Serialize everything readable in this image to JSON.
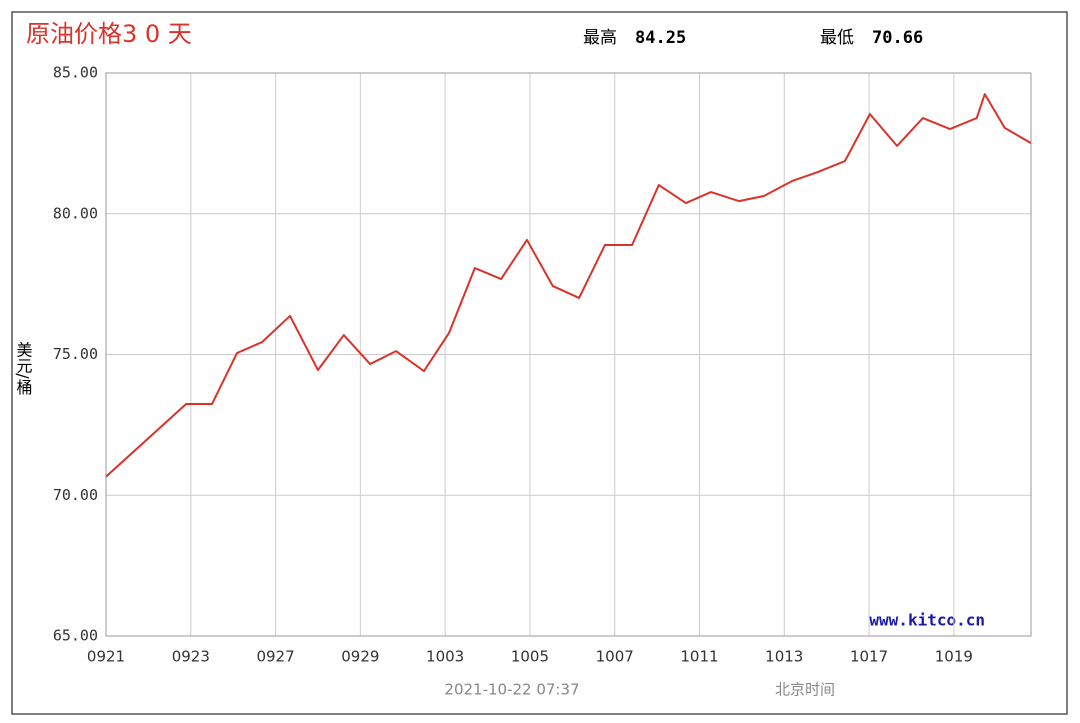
{
  "chart_data": {
    "type": "line",
    "title": "原油价格3 0 天",
    "high_label": "最高",
    "high": 84.25,
    "low_label": "最低",
    "low": 70.66,
    "ylabel": "美元/桶",
    "watermark": "www.kitco.cn",
    "timestamp": "2021-10-22 07:37",
    "timezone": "北京时间",
    "x": [
      0,
      1.89,
      2.5,
      3.09,
      3.68,
      4.34,
      5.0,
      5.61,
      6.23,
      6.84,
      7.5,
      8.09,
      8.7,
      9.32,
      9.93,
      10.54,
      11.16,
      11.77,
      12.41,
      13.04,
      13.68,
      14.27,
      14.93,
      15.52,
      16.18,
      16.79,
      17.43,
      18.02,
      18.66,
      19.27,
      19.91,
      20.54,
      20.73,
      21.2,
      21.82
    ],
    "series": [
      {
        "color": "#d9332b",
        "values": [
          70.66,
          73.24,
          73.24,
          75.05,
          75.44,
          76.37,
          74.45,
          75.69,
          74.66,
          75.12,
          74.41,
          75.76,
          78.07,
          77.68,
          79.07,
          77.43,
          77.01,
          78.89,
          78.89,
          81.02,
          80.38,
          80.77,
          80.45,
          80.63,
          81.16,
          81.48,
          81.87,
          83.54,
          82.41,
          83.4,
          83.01,
          83.4,
          84.25,
          83.05,
          82.51
        ]
      }
    ],
    "xlim": [
      0,
      21.82
    ],
    "xticks": [
      {
        "value": 0,
        "label": "0921"
      },
      {
        "value": 2,
        "label": "0923"
      },
      {
        "value": 4,
        "label": "0927"
      },
      {
        "value": 6,
        "label": "0929"
      },
      {
        "value": 8,
        "label": "1003"
      },
      {
        "value": 10,
        "label": "1005"
      },
      {
        "value": 12,
        "label": "1007"
      },
      {
        "value": 14,
        "label": "1011"
      },
      {
        "value": 16,
        "label": "1013"
      },
      {
        "value": 18,
        "label": "1017"
      },
      {
        "value": 20,
        "label": "1019"
      }
    ],
    "ylim": [
      65,
      85
    ],
    "yticks": [
      {
        "value": 65,
        "label": "65.00"
      },
      {
        "value": 70,
        "label": "70.00"
      },
      {
        "value": 75,
        "label": "75.00"
      },
      {
        "value": 80,
        "label": "80.00"
      },
      {
        "value": 85,
        "label": "85.00"
      }
    ],
    "grid": true
  }
}
